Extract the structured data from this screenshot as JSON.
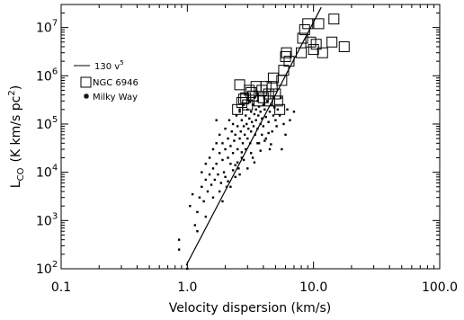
{
  "chart_data": {
    "type": "scatter",
    "title": "",
    "xlabel": "Velocity dispersion (km/s)",
    "ylabel_main": "L",
    "ylabel_sub": "CO",
    "ylabel_rest": "(K km/s pc",
    "ylabel_sup": "2",
    "ylabel_end": ")",
    "x_scale": "log",
    "y_scale": "log",
    "xlim": [
      0.1,
      100
    ],
    "ylim": [
      100,
      30000000
    ],
    "grid": false,
    "x_ticks": [
      {
        "value": 0.1,
        "label": "0.1"
      },
      {
        "value": 1,
        "label": "1.0"
      },
      {
        "value": 10,
        "label": "10.0"
      },
      {
        "value": 100,
        "label": "100.0"
      }
    ],
    "y_ticks": [
      {
        "value": 100,
        "base": "10",
        "exp": "2"
      },
      {
        "value": 1000,
        "base": "10",
        "exp": "3"
      },
      {
        "value": 10000,
        "base": "10",
        "exp": "4"
      },
      {
        "value": 100000,
        "base": "10",
        "exp": "5"
      },
      {
        "value": 1000000,
        "base": "10",
        "exp": "6"
      },
      {
        "value": 10000000,
        "base": "10",
        "exp": "7"
      }
    ],
    "legend_placement": "top-left",
    "legend": [
      {
        "symbol": "line",
        "label": "130 v",
        "sup": "5"
      },
      {
        "symbol": "square",
        "label": "NGC 6946",
        "sup": ""
      },
      {
        "symbol": "asterisk",
        "label": "Milky Way",
        "sup": ""
      }
    ],
    "fit_line": {
      "name": "130 v^5",
      "coefficient": 130,
      "exponent": 5,
      "x_range": [
        0.98,
        11.5
      ]
    },
    "series": [
      {
        "name": "NGC 6946",
        "marker": "square",
        "points": [
          [
            2.6,
            650000
          ],
          [
            2.7,
            280000
          ],
          [
            2.5,
            200000
          ],
          [
            2.9,
            350000
          ],
          [
            3.0,
            250000
          ],
          [
            3.2,
            450000
          ],
          [
            3.5,
            600000
          ],
          [
            3.3,
            380000
          ],
          [
            3.7,
            300000
          ],
          [
            3.9,
            500000
          ],
          [
            4.0,
            350000
          ],
          [
            4.2,
            600000
          ],
          [
            4.4,
            420000
          ],
          [
            4.5,
            300000
          ],
          [
            4.7,
            600000
          ],
          [
            5.0,
            420000
          ],
          [
            5.2,
            300000
          ],
          [
            5.4,
            200000
          ],
          [
            5.6,
            800000
          ],
          [
            5.8,
            1300000
          ],
          [
            6.0,
            2500000
          ],
          [
            6.1,
            3000000
          ],
          [
            6.4,
            2000000
          ],
          [
            4.8,
            900000
          ],
          [
            3.1,
            500000
          ],
          [
            8.0,
            3000000
          ],
          [
            8.5,
            9000000
          ],
          [
            9.0,
            12000000
          ],
          [
            9.5,
            5000000
          ],
          [
            10.0,
            3500000
          ],
          [
            10.5,
            4500000
          ],
          [
            11.0,
            12000000
          ],
          [
            11.8,
            3000000
          ],
          [
            14.0,
            5000000
          ],
          [
            14.5,
            15000000
          ],
          [
            17.5,
            4000000
          ],
          [
            8.2,
            6000000
          ],
          [
            2.8,
            330000
          ]
        ]
      },
      {
        "name": "Milky Way",
        "marker": "asterisk",
        "points": [
          [
            0.86,
            400
          ],
          [
            0.86,
            250
          ],
          [
            1.05,
            2000
          ],
          [
            1.1,
            3500
          ],
          [
            1.15,
            800
          ],
          [
            1.2,
            1500
          ],
          [
            1.25,
            3000
          ],
          [
            1.3,
            5000
          ],
          [
            1.3,
            10000
          ],
          [
            1.35,
            2500
          ],
          [
            1.4,
            7000
          ],
          [
            1.4,
            15000
          ],
          [
            1.45,
            4000
          ],
          [
            1.5,
            9000
          ],
          [
            1.5,
            20000
          ],
          [
            1.55,
            5500
          ],
          [
            1.6,
            12000
          ],
          [
            1.6,
            30000
          ],
          [
            1.65,
            7000
          ],
          [
            1.7,
            15000
          ],
          [
            1.7,
            40000
          ],
          [
            1.75,
            9000
          ],
          [
            1.8,
            25000
          ],
          [
            1.8,
            60000
          ],
          [
            1.85,
            6000
          ],
          [
            1.9,
            18000
          ],
          [
            1.9,
            40000
          ],
          [
            1.95,
            10000
          ],
          [
            2.0,
            30000
          ],
          [
            2.0,
            80000
          ],
          [
            2.05,
            5000
          ],
          [
            2.1,
            20000
          ],
          [
            2.1,
            50000
          ],
          [
            2.15,
            120000
          ],
          [
            2.2,
            15000
          ],
          [
            2.2,
            35000
          ],
          [
            2.25,
            70000
          ],
          [
            2.3,
            25000
          ],
          [
            2.3,
            100000
          ],
          [
            2.35,
            45000
          ],
          [
            2.4,
            8000
          ],
          [
            2.4,
            60000
          ],
          [
            2.45,
            150000
          ],
          [
            2.5,
            30000
          ],
          [
            2.5,
            90000
          ],
          [
            2.55,
            12000
          ],
          [
            2.6,
            50000
          ],
          [
            2.6,
            200000
          ],
          [
            2.65,
            70000
          ],
          [
            2.7,
            20000
          ],
          [
            2.7,
            120000
          ],
          [
            2.75,
            40000
          ],
          [
            2.8,
            90000
          ],
          [
            2.8,
            250000
          ],
          [
            2.85,
            60000
          ],
          [
            2.9,
            150000
          ],
          [
            2.9,
            30000
          ],
          [
            2.95,
            100000
          ],
          [
            3.0,
            200000
          ],
          [
            3.0,
            50000
          ],
          [
            3.05,
            80000
          ],
          [
            3.1,
            300000
          ],
          [
            3.1,
            130000
          ],
          [
            3.15,
            40000
          ],
          [
            3.2,
            180000
          ],
          [
            3.2,
            70000
          ],
          [
            3.25,
            110000
          ],
          [
            3.3,
            250000
          ],
          [
            3.3,
            20000
          ],
          [
            3.35,
            90000
          ],
          [
            3.4,
            160000
          ],
          [
            3.4,
            350000
          ],
          [
            3.45,
            60000
          ],
          [
            3.5,
            120000
          ],
          [
            3.5,
            200000
          ],
          [
            3.6,
            80000
          ],
          [
            3.6,
            300000
          ],
          [
            3.65,
            150000
          ],
          [
            3.7,
            40000
          ],
          [
            3.7,
            230000
          ],
          [
            3.8,
            100000
          ],
          [
            3.8,
            180000
          ],
          [
            3.9,
            130000
          ],
          [
            3.9,
            60000
          ],
          [
            4.0,
            250000
          ],
          [
            4.0,
            90000
          ],
          [
            4.1,
            200000
          ],
          [
            4.2,
            140000
          ],
          [
            4.2,
            50000
          ],
          [
            4.3,
            300000
          ],
          [
            4.4,
            110000
          ],
          [
            4.5,
            180000
          ],
          [
            4.6,
            250000
          ],
          [
            4.7,
            70000
          ],
          [
            4.8,
            150000
          ],
          [
            4.9,
            220000
          ],
          [
            5.0,
            120000
          ],
          [
            5.1,
            90000
          ],
          [
            5.2,
            200000
          ],
          [
            5.4,
            150000
          ],
          [
            5.6,
            30000
          ],
          [
            5.8,
            100000
          ],
          [
            6.0,
            60000
          ],
          [
            6.2,
            200000
          ],
          [
            4.5,
            30000
          ],
          [
            1.6,
            3000
          ],
          [
            1.8,
            4000
          ],
          [
            2.0,
            8000
          ],
          [
            2.2,
            5000
          ],
          [
            2.4,
            14000
          ],
          [
            2.6,
            9000
          ],
          [
            2.8,
            18000
          ],
          [
            3.0,
            12000
          ],
          [
            3.2,
            25000
          ],
          [
            3.4,
            16000
          ],
          [
            1.9,
            2500
          ],
          [
            2.1,
            6500
          ],
          [
            2.3,
            11000
          ],
          [
            2.5,
            16000
          ],
          [
            2.7,
            26000
          ],
          [
            3.6,
            40000
          ],
          [
            3.8,
            28000
          ],
          [
            4.1,
            45000
          ],
          [
            4.4,
            65000
          ],
          [
            4.6,
            38000
          ],
          [
            1.7,
            120000
          ],
          [
            2.6,
            180000
          ],
          [
            5.5,
            350000
          ],
          [
            6.5,
            120000
          ],
          [
            7.0,
            180000
          ],
          [
            1.2,
            600
          ],
          [
            1.0,
            100
          ],
          [
            1.4,
            1200
          ]
        ]
      }
    ]
  }
}
